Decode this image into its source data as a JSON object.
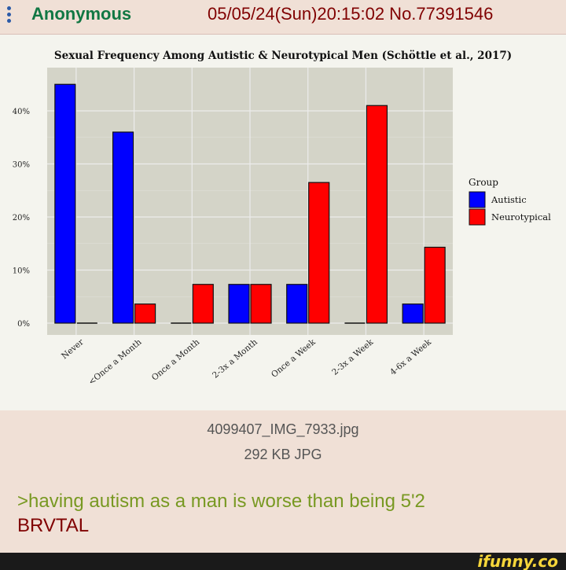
{
  "post": {
    "poster_name": "Anonymous",
    "post_meta": "05/05/24(Sun)20:15:02 No.77391546",
    "file_name": "4099407_IMG_7933.jpg",
    "file_size": "292 KB JPG",
    "comment_greentext": ">having autism as a man is worse than being 5'2",
    "comment_text": "BRVTAL"
  },
  "colors": {
    "name": "#117743",
    "meta": "#800000",
    "greentext": "#789922",
    "autistic": "#0000ff",
    "neurotypical": "#ff0000"
  },
  "watermark": "ifunny.co",
  "chart_data": {
    "type": "bar",
    "title": "Sexual Frequency Among Autistic & Neurotypical Men (Schöttle et al., 2017)",
    "categories": [
      "Never",
      "<Once a Month",
      "Once a Month",
      "2-3x a Month",
      "Once a Week",
      "2-3x a Week",
      "4-6x a Week"
    ],
    "series": [
      {
        "name": "Autistic",
        "values": [
          45,
          36,
          0,
          7.3,
          7.3,
          0,
          3.6
        ]
      },
      {
        "name": "Neurotypical",
        "values": [
          0,
          3.6,
          7.3,
          7.3,
          26.5,
          41,
          14.3
        ]
      }
    ],
    "yticks": [
      0,
      10,
      20,
      30,
      40
    ],
    "ytick_labels": [
      "0%",
      "10%",
      "20%",
      "30%",
      "40%"
    ],
    "ylim": [
      0,
      48
    ],
    "legend_title": "Group",
    "legend_position": "right",
    "grid": true
  }
}
